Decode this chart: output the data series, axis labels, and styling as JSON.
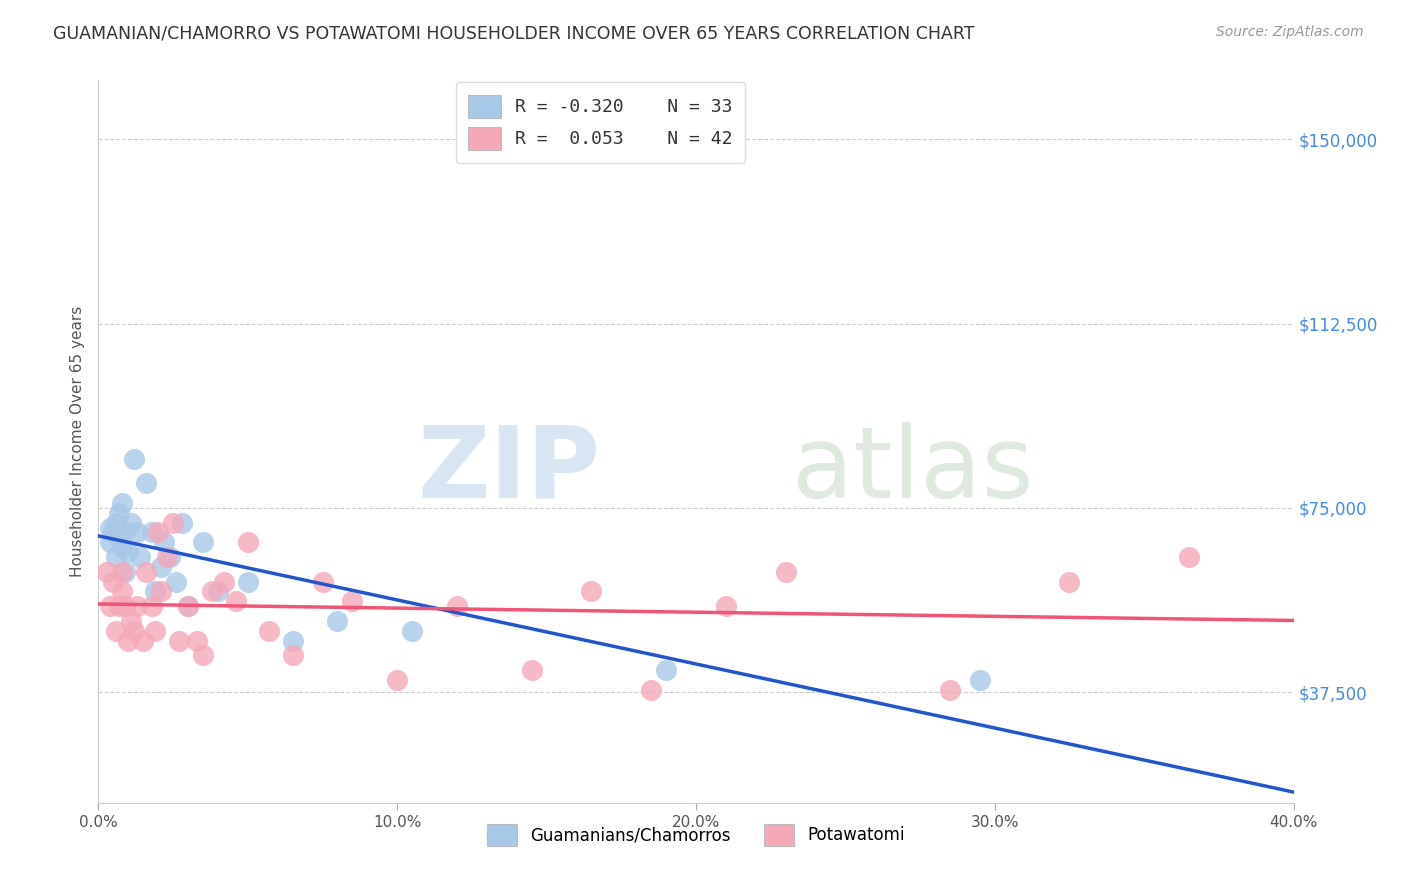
{
  "title": "GUAMANIAN/CHAMORRO VS POTAWATOMI HOUSEHOLDER INCOME OVER 65 YEARS CORRELATION CHART",
  "source": "Source: ZipAtlas.com",
  "ylabel": "Householder Income Over 65 years",
  "ytick_labels": [
    "$37,500",
    "$75,000",
    "$112,500",
    "$150,000"
  ],
  "ytick_values": [
    37500,
    75000,
    112500,
    150000
  ],
  "xlim": [
    0.0,
    0.4
  ],
  "ylim": [
    15000,
    162000
  ],
  "color_blue": "#a8c8e8",
  "color_pink": "#f4a8b8",
  "line_blue": "#2255cc",
  "line_pink": "#ee5577",
  "guamanian_x": [
    0.004,
    0.004,
    0.005,
    0.006,
    0.006,
    0.007,
    0.007,
    0.008,
    0.008,
    0.009,
    0.009,
    0.01,
    0.011,
    0.012,
    0.013,
    0.014,
    0.016,
    0.018,
    0.019,
    0.021,
    0.022,
    0.024,
    0.026,
    0.028,
    0.03,
    0.035,
    0.04,
    0.05,
    0.065,
    0.08,
    0.105,
    0.19,
    0.295
  ],
  "guamanian_y": [
    71000,
    68000,
    70000,
    65000,
    72000,
    69000,
    74000,
    76000,
    67000,
    70000,
    62000,
    66000,
    72000,
    85000,
    70000,
    65000,
    80000,
    70000,
    58000,
    63000,
    68000,
    65000,
    60000,
    72000,
    55000,
    68000,
    58000,
    60000,
    48000,
    52000,
    50000,
    42000,
    40000
  ],
  "potawatomi_x": [
    0.003,
    0.004,
    0.005,
    0.006,
    0.007,
    0.008,
    0.008,
    0.009,
    0.01,
    0.011,
    0.012,
    0.013,
    0.015,
    0.016,
    0.018,
    0.019,
    0.02,
    0.021,
    0.023,
    0.025,
    0.027,
    0.03,
    0.033,
    0.035,
    0.038,
    0.042,
    0.046,
    0.05,
    0.057,
    0.065,
    0.075,
    0.085,
    0.1,
    0.12,
    0.145,
    0.165,
    0.185,
    0.21,
    0.23,
    0.285,
    0.325,
    0.365
  ],
  "potawatomi_y": [
    62000,
    55000,
    60000,
    50000,
    55000,
    58000,
    62000,
    55000,
    48000,
    52000,
    50000,
    55000,
    48000,
    62000,
    55000,
    50000,
    70000,
    58000,
    65000,
    72000,
    48000,
    55000,
    48000,
    45000,
    58000,
    60000,
    56000,
    68000,
    50000,
    45000,
    60000,
    56000,
    40000,
    55000,
    42000,
    58000,
    38000,
    55000,
    62000,
    38000,
    60000,
    65000
  ]
}
